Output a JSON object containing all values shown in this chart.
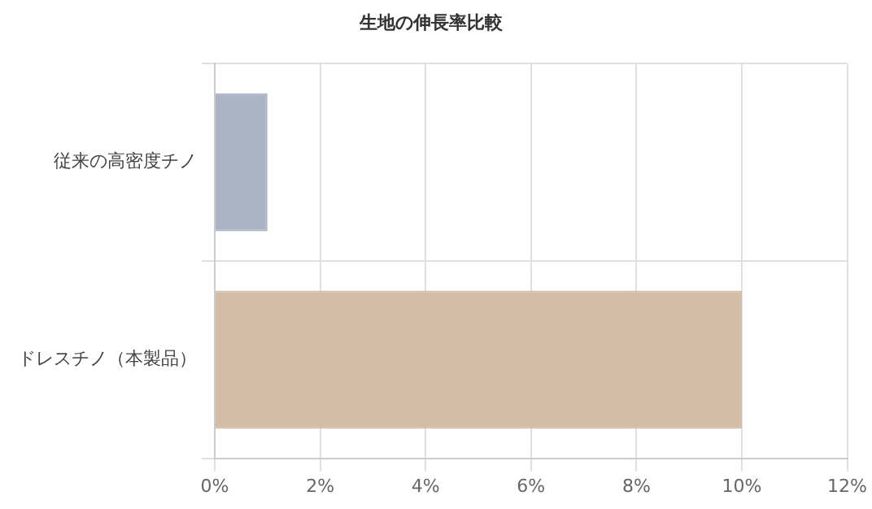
{
  "chart_data": {
    "type": "bar",
    "orientation": "horizontal",
    "title": "生地の伸長率比較",
    "categories": [
      "従来の高密度チノ",
      "ドレスチノ（本製品）"
    ],
    "values": [
      1,
      10
    ],
    "colors": [
      "#aab4c5",
      "#d4bda6"
    ],
    "xlim": [
      0,
      12
    ],
    "xticks": [
      {
        "value": 0,
        "label": "0%"
      },
      {
        "value": 2,
        "label": "2%"
      },
      {
        "value": 4,
        "label": "4%"
      },
      {
        "value": 6,
        "label": "6%"
      },
      {
        "value": 8,
        "label": "8%"
      },
      {
        "value": 10,
        "label": "10%"
      },
      {
        "value": 12,
        "label": "12%"
      }
    ],
    "grid": true,
    "legend": false
  }
}
